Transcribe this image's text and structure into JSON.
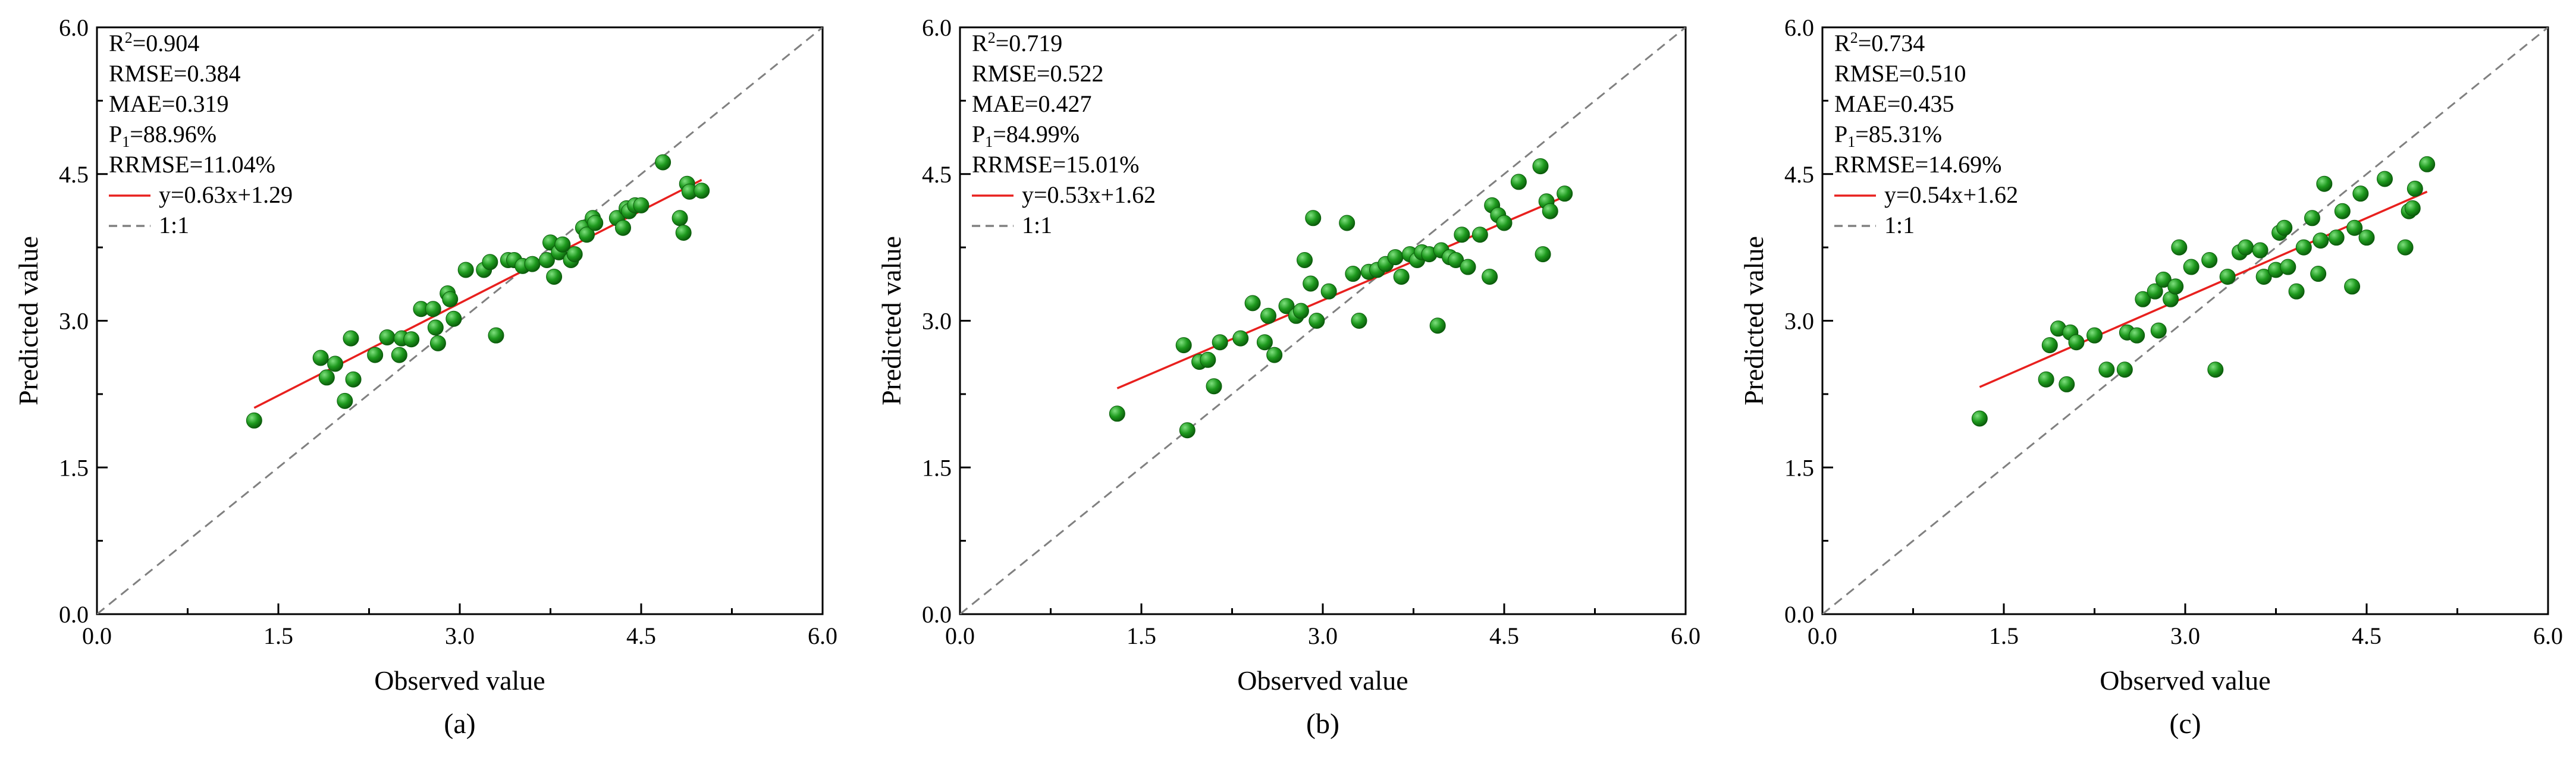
{
  "colors": {
    "point": "#1e9a1e",
    "point_edge": "#0b5c0b",
    "point_highlight": "#7fe07f",
    "fit_line": "#e8201e",
    "identity_line": "#808080",
    "axis": "#000000"
  },
  "chart_data": [
    {
      "type": "scatter",
      "panel_label": "(a)",
      "xlabel": "Observed value",
      "ylabel": "Predicted value",
      "xlim": [
        0,
        6
      ],
      "ylim": [
        0,
        6
      ],
      "xticks": [
        "0.0",
        "1.5",
        "3.0",
        "4.5",
        "6.0"
      ],
      "yticks": [
        "0.0",
        "1.5",
        "3.0",
        "4.5",
        "6.0"
      ],
      "grid": false,
      "stats": [
        "R²=0.904",
        "RMSE=0.384",
        "MAE=0.319",
        "P₁=88.96%",
        "RRMSE=11.04%"
      ],
      "legend": [
        "y=0.63x+1.29",
        "1:1"
      ],
      "legend_position": "top-left",
      "fit": {
        "slope": 0.63,
        "intercept": 1.29,
        "x_range": [
          1.3,
          5.0
        ]
      },
      "identity": [
        0,
        6
      ],
      "points": [
        [
          1.3,
          1.98
        ],
        [
          1.85,
          2.62
        ],
        [
          1.9,
          2.42
        ],
        [
          1.97,
          2.56
        ],
        [
          2.05,
          2.18
        ],
        [
          2.1,
          2.82
        ],
        [
          2.12,
          2.4
        ],
        [
          2.3,
          2.65
        ],
        [
          2.4,
          2.83
        ],
        [
          2.5,
          2.65
        ],
        [
          2.52,
          2.82
        ],
        [
          2.6,
          2.81
        ],
        [
          2.68,
          3.12
        ],
        [
          2.78,
          3.12
        ],
        [
          2.8,
          2.93
        ],
        [
          2.82,
          2.77
        ],
        [
          2.9,
          3.28
        ],
        [
          2.92,
          3.22
        ],
        [
          2.95,
          3.02
        ],
        [
          3.05,
          3.52
        ],
        [
          3.2,
          3.52
        ],
        [
          3.25,
          3.6
        ],
        [
          3.3,
          2.85
        ],
        [
          3.4,
          3.62
        ],
        [
          3.45,
          3.62
        ],
        [
          3.52,
          3.56
        ],
        [
          3.6,
          3.58
        ],
        [
          3.72,
          3.62
        ],
        [
          3.75,
          3.8
        ],
        [
          3.78,
          3.45
        ],
        [
          3.82,
          3.7
        ],
        [
          3.85,
          3.78
        ],
        [
          3.92,
          3.62
        ],
        [
          3.95,
          3.68
        ],
        [
          4.02,
          3.95
        ],
        [
          4.05,
          3.88
        ],
        [
          4.1,
          4.05
        ],
        [
          4.12,
          4.0
        ],
        [
          4.3,
          4.05
        ],
        [
          4.35,
          3.95
        ],
        [
          4.38,
          4.15
        ],
        [
          4.4,
          4.12
        ],
        [
          4.45,
          4.18
        ],
        [
          4.5,
          4.18
        ],
        [
          4.68,
          4.62
        ],
        [
          4.82,
          4.05
        ],
        [
          4.85,
          3.9
        ],
        [
          4.88,
          4.4
        ],
        [
          4.9,
          4.32
        ],
        [
          5.0,
          4.33
        ]
      ]
    },
    {
      "type": "scatter",
      "panel_label": "(b)",
      "xlabel": "Observed value",
      "ylabel": "Predicted value",
      "xlim": [
        0,
        6
      ],
      "ylim": [
        0,
        6
      ],
      "xticks": [
        "0.0",
        "1.5",
        "3.0",
        "4.5",
        "6.0"
      ],
      "yticks": [
        "0.0",
        "1.5",
        "3.0",
        "4.5",
        "6.0"
      ],
      "grid": false,
      "stats": [
        "R²=0.719",
        "RMSE=0.522",
        "MAE=0.427",
        "P₁=84.99%",
        "RRMSE=15.01%"
      ],
      "legend": [
        "y=0.53x+1.62",
        "1:1"
      ],
      "legend_position": "top-left",
      "fit": {
        "slope": 0.53,
        "intercept": 1.62,
        "x_range": [
          1.3,
          5.0
        ]
      },
      "identity": [
        0,
        6
      ],
      "points": [
        [
          1.3,
          2.05
        ],
        [
          1.85,
          2.75
        ],
        [
          1.88,
          1.88
        ],
        [
          1.98,
          2.58
        ],
        [
          2.05,
          2.6
        ],
        [
          2.1,
          2.33
        ],
        [
          2.15,
          2.78
        ],
        [
          2.32,
          2.82
        ],
        [
          2.42,
          3.18
        ],
        [
          2.52,
          2.78
        ],
        [
          2.55,
          3.05
        ],
        [
          2.6,
          2.65
        ],
        [
          2.7,
          3.15
        ],
        [
          2.78,
          3.05
        ],
        [
          2.82,
          3.1
        ],
        [
          2.85,
          3.62
        ],
        [
          2.9,
          3.38
        ],
        [
          2.92,
          4.05
        ],
        [
          2.95,
          3.0
        ],
        [
          3.05,
          3.3
        ],
        [
          3.2,
          4.0
        ],
        [
          3.25,
          3.48
        ],
        [
          3.3,
          3.0
        ],
        [
          3.38,
          3.5
        ],
        [
          3.45,
          3.52
        ],
        [
          3.52,
          3.58
        ],
        [
          3.6,
          3.65
        ],
        [
          3.65,
          3.45
        ],
        [
          3.72,
          3.68
        ],
        [
          3.78,
          3.62
        ],
        [
          3.82,
          3.7
        ],
        [
          3.88,
          3.68
        ],
        [
          3.95,
          2.95
        ],
        [
          3.98,
          3.72
        ],
        [
          4.05,
          3.65
        ],
        [
          4.1,
          3.62
        ],
        [
          4.15,
          3.88
        ],
        [
          4.2,
          3.55
        ],
        [
          4.3,
          3.88
        ],
        [
          4.38,
          3.45
        ],
        [
          4.4,
          4.18
        ],
        [
          4.45,
          4.08
        ],
        [
          4.5,
          4.0
        ],
        [
          4.62,
          4.42
        ],
        [
          4.8,
          4.58
        ],
        [
          4.82,
          3.68
        ],
        [
          4.85,
          4.22
        ],
        [
          4.88,
          4.12
        ],
        [
          5.0,
          4.3
        ]
      ]
    },
    {
      "type": "scatter",
      "panel_label": "(c)",
      "xlabel": "Observed value",
      "ylabel": "Predicted value",
      "xlim": [
        0,
        6
      ],
      "ylim": [
        0,
        6
      ],
      "xticks": [
        "0.0",
        "1.5",
        "3.0",
        "4.5",
        "6.0"
      ],
      "yticks": [
        "0.0",
        "1.5",
        "3.0",
        "4.5",
        "6.0"
      ],
      "grid": false,
      "stats": [
        "R²=0.734",
        "RMSE=0.510",
        "MAE=0.435",
        "P₁=85.31%",
        "RRMSE=14.69%"
      ],
      "legend": [
        "y=0.54x+1.62",
        "1:1"
      ],
      "legend_position": "top-left",
      "fit": {
        "slope": 0.54,
        "intercept": 1.62,
        "x_range": [
          1.3,
          5.0
        ]
      },
      "identity": [
        0,
        6
      ],
      "points": [
        [
          1.3,
          2.0
        ],
        [
          1.85,
          2.4
        ],
        [
          1.88,
          2.75
        ],
        [
          1.95,
          2.92
        ],
        [
          2.02,
          2.35
        ],
        [
          2.05,
          2.88
        ],
        [
          2.1,
          2.78
        ],
        [
          2.25,
          2.85
        ],
        [
          2.35,
          2.5
        ],
        [
          2.5,
          2.5
        ],
        [
          2.52,
          2.88
        ],
        [
          2.6,
          2.85
        ],
        [
          2.65,
          3.22
        ],
        [
          2.75,
          3.3
        ],
        [
          2.78,
          2.9
        ],
        [
          2.82,
          3.42
        ],
        [
          2.88,
          3.22
        ],
        [
          2.92,
          3.35
        ],
        [
          2.95,
          3.75
        ],
        [
          3.05,
          3.55
        ],
        [
          3.2,
          3.62
        ],
        [
          3.25,
          2.5
        ],
        [
          3.35,
          3.45
        ],
        [
          3.45,
          3.7
        ],
        [
          3.5,
          3.75
        ],
        [
          3.62,
          3.72
        ],
        [
          3.65,
          3.45
        ],
        [
          3.75,
          3.52
        ],
        [
          3.78,
          3.9
        ],
        [
          3.82,
          3.95
        ],
        [
          3.85,
          3.55
        ],
        [
          3.92,
          3.3
        ],
        [
          3.98,
          3.75
        ],
        [
          4.05,
          4.05
        ],
        [
          4.1,
          3.48
        ],
        [
          4.12,
          3.82
        ],
        [
          4.15,
          4.4
        ],
        [
          4.25,
          3.85
        ],
        [
          4.3,
          4.12
        ],
        [
          4.38,
          3.35
        ],
        [
          4.4,
          3.95
        ],
        [
          4.45,
          4.3
        ],
        [
          4.5,
          3.85
        ],
        [
          4.65,
          4.45
        ],
        [
          4.82,
          3.75
        ],
        [
          4.85,
          4.12
        ],
        [
          4.88,
          4.15
        ],
        [
          4.9,
          4.35
        ],
        [
          5.0,
          4.6
        ]
      ]
    }
  ]
}
